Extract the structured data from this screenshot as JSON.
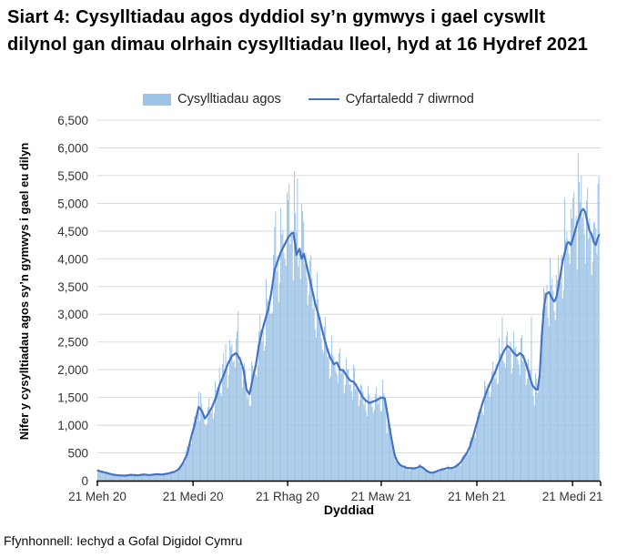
{
  "title": "Siart 4: Cysylltiadau agos dyddiol sy’n gymwys i gael cyswllt dilynol gan dimau olrhain cysylltiadau lleol, hyd at 16 Hydref 2021",
  "legend": {
    "bars_label": "Cysylltiadau agos",
    "line_label": "Cyfartaledd 7 diwrnod"
  },
  "footer": "Ffynhonnell: Iechyd a Gofal Digidol Cymru",
  "colors": {
    "bars": "#9DC3E6",
    "line": "#4472C4",
    "grid": "#D9D9D9",
    "axis": "#000000",
    "tick_text": "#333333"
  },
  "chart_data": {
    "type": "bar+line",
    "title": "Siart 4: Cysylltiadau agos dyddiol sy’n gymwys i gael cyswllt dilynol gan dimau olrhain cysylltiadau lleol, hyd at 16 Hydref 2021",
    "xlabel": "Dyddiad",
    "ylabel": "Nifer y cysylltiadau agos sy’n gymwys i gael eu dilyn",
    "x_start_date": "2020-06-21",
    "x_end_date": "2021-10-16",
    "days_total": 483,
    "ylim": [
      0,
      6500
    ],
    "y_tick_step": 500,
    "grid": "horizontal",
    "legend_position": "top-center",
    "y_tick_labels": [
      "0",
      "500",
      "1,000",
      "1,500",
      "2,000",
      "2,500",
      "3,000",
      "3,500",
      "4,000",
      "4,500",
      "5,000",
      "5,500",
      "6,000",
      "6,500"
    ],
    "x_ticks": [
      {
        "day": 0,
        "label": "21 Meh 20"
      },
      {
        "day": 92,
        "label": "21 Medi 20"
      },
      {
        "day": 183,
        "label": "21 Rhag 20"
      },
      {
        "day": 273,
        "label": "21 Maw 21"
      },
      {
        "day": 365,
        "label": "21 Meh 21"
      },
      {
        "day": 457,
        "label": "21 Medi 21"
      },
      {
        "day": 484,
        "label": ""
      }
    ],
    "series": [
      {
        "name": "Cyfartaledd 7 diwrnod",
        "type": "line",
        "keypoints": [
          [
            0,
            180
          ],
          [
            4,
            160
          ],
          [
            8,
            140
          ],
          [
            14,
            110
          ],
          [
            20,
            95
          ],
          [
            26,
            90
          ],
          [
            32,
            105
          ],
          [
            38,
            95
          ],
          [
            44,
            110
          ],
          [
            50,
            100
          ],
          [
            56,
            115
          ],
          [
            62,
            110
          ],
          [
            68,
            130
          ],
          [
            74,
            160
          ],
          [
            78,
            210
          ],
          [
            82,
            320
          ],
          [
            86,
            480
          ],
          [
            90,
            800
          ],
          [
            93,
            1000
          ],
          [
            97,
            1330
          ],
          [
            100,
            1260
          ],
          [
            103,
            1120
          ],
          [
            106,
            1200
          ],
          [
            110,
            1330
          ],
          [
            114,
            1520
          ],
          [
            117,
            1720
          ],
          [
            121,
            1900
          ],
          [
            125,
            2100
          ],
          [
            129,
            2250
          ],
          [
            133,
            2300
          ],
          [
            137,
            2180
          ],
          [
            140,
            2010
          ],
          [
            143,
            1640
          ],
          [
            146,
            1560
          ],
          [
            149,
            1850
          ],
          [
            152,
            2080
          ],
          [
            155,
            2450
          ],
          [
            158,
            2700
          ],
          [
            161,
            2900
          ],
          [
            164,
            3100
          ],
          [
            167,
            3400
          ],
          [
            170,
            3800
          ],
          [
            173,
            3960
          ],
          [
            176,
            4120
          ],
          [
            179,
            4230
          ],
          [
            183,
            4380
          ],
          [
            186,
            4450
          ],
          [
            188,
            4470
          ],
          [
            190,
            4240
          ],
          [
            191,
            4070
          ],
          [
            194,
            4180
          ],
          [
            196,
            4000
          ],
          [
            198,
            4090
          ],
          [
            200,
            3950
          ],
          [
            203,
            3700
          ],
          [
            206,
            3450
          ],
          [
            209,
            3200
          ],
          [
            212,
            3000
          ],
          [
            215,
            2780
          ],
          [
            218,
            2550
          ],
          [
            221,
            2350
          ],
          [
            224,
            2200
          ],
          [
            227,
            2100
          ],
          [
            230,
            2130
          ],
          [
            233,
            2000
          ],
          [
            236,
            1990
          ],
          [
            240,
            1870
          ],
          [
            243,
            1800
          ],
          [
            246,
            1780
          ],
          [
            249,
            1700
          ],
          [
            252,
            1600
          ],
          [
            255,
            1500
          ],
          [
            258,
            1440
          ],
          [
            261,
            1400
          ],
          [
            264,
            1420
          ],
          [
            267,
            1440
          ],
          [
            270,
            1470
          ],
          [
            273,
            1500
          ],
          [
            276,
            1480
          ],
          [
            279,
            1150
          ],
          [
            281,
            900
          ],
          [
            283,
            700
          ],
          [
            285,
            500
          ],
          [
            287,
            380
          ],
          [
            289,
            320
          ],
          [
            291,
            280
          ],
          [
            294,
            250
          ],
          [
            297,
            230
          ],
          [
            300,
            225
          ],
          [
            303,
            220
          ],
          [
            307,
            230
          ],
          [
            310,
            260
          ],
          [
            313,
            230
          ],
          [
            316,
            180
          ],
          [
            319,
            150
          ],
          [
            322,
            140
          ],
          [
            325,
            160
          ],
          [
            328,
            185
          ],
          [
            331,
            200
          ],
          [
            334,
            215
          ],
          [
            337,
            230
          ],
          [
            340,
            225
          ],
          [
            343,
            240
          ],
          [
            346,
            280
          ],
          [
            349,
            330
          ],
          [
            352,
            420
          ],
          [
            355,
            500
          ],
          [
            358,
            620
          ],
          [
            361,
            800
          ],
          [
            364,
            1000
          ],
          [
            367,
            1200
          ],
          [
            370,
            1400
          ],
          [
            373,
            1560
          ],
          [
            376,
            1700
          ],
          [
            379,
            1830
          ],
          [
            382,
            1950
          ],
          [
            385,
            2100
          ],
          [
            388,
            2230
          ],
          [
            391,
            2350
          ],
          [
            394,
            2430
          ],
          [
            397,
            2380
          ],
          [
            400,
            2300
          ],
          [
            403,
            2250
          ],
          [
            406,
            2300
          ],
          [
            409,
            2250
          ],
          [
            412,
            2100
          ],
          [
            415,
            1900
          ],
          [
            418,
            1720
          ],
          [
            421,
            1650
          ],
          [
            423,
            1640
          ],
          [
            425,
            1900
          ],
          [
            427,
            2600
          ],
          [
            429,
            3100
          ],
          [
            431,
            3360
          ],
          [
            434,
            3400
          ],
          [
            437,
            3280
          ],
          [
            439,
            3230
          ],
          [
            441,
            3300
          ],
          [
            443,
            3500
          ],
          [
            445,
            3720
          ],
          [
            447,
            3950
          ],
          [
            449,
            4100
          ],
          [
            451,
            4270
          ],
          [
            453,
            4300
          ],
          [
            455,
            4250
          ],
          [
            457,
            4370
          ],
          [
            459,
            4500
          ],
          [
            461,
            4640
          ],
          [
            463,
            4750
          ],
          [
            465,
            4860
          ],
          [
            467,
            4900
          ],
          [
            469,
            4830
          ],
          [
            471,
            4650
          ],
          [
            473,
            4500
          ],
          [
            475,
            4440
          ],
          [
            477,
            4300
          ],
          [
            479,
            4250
          ],
          [
            480,
            4330
          ],
          [
            482,
            4430
          ]
        ]
      },
      {
        "name": "Cysylltiadau agos",
        "type": "bar",
        "derivation": "daily bars = 7-day-average keypoints interpolated x weekly_pattern x jitter, with listed overrides",
        "weekly_pattern": [
          0.82,
          1.12,
          1.14,
          1.07,
          1.03,
          0.99,
          0.83
        ],
        "jitter": {
          "a1": 0.06,
          "f1": 2.3,
          "a2": 0.05,
          "f2": 0.9
        },
        "overrides": {
          "86": 620,
          "97": 1600,
          "117": 2050,
          "123": 2460,
          "133": 2560,
          "135": 3050,
          "171": 4850,
          "182": 5200,
          "184": 5350,
          "189": 5580,
          "192": 5450,
          "196": 5000,
          "278": 850,
          "389": 2950,
          "394": 2700,
          "417": 2950,
          "437": 3650,
          "441": 3700,
          "449": 5100,
          "455": 4900,
          "458": 5200,
          "462": 5900,
          "465": 5500,
          "470": 5050,
          "481": 5350,
          "482": 5480
        }
      }
    ]
  }
}
